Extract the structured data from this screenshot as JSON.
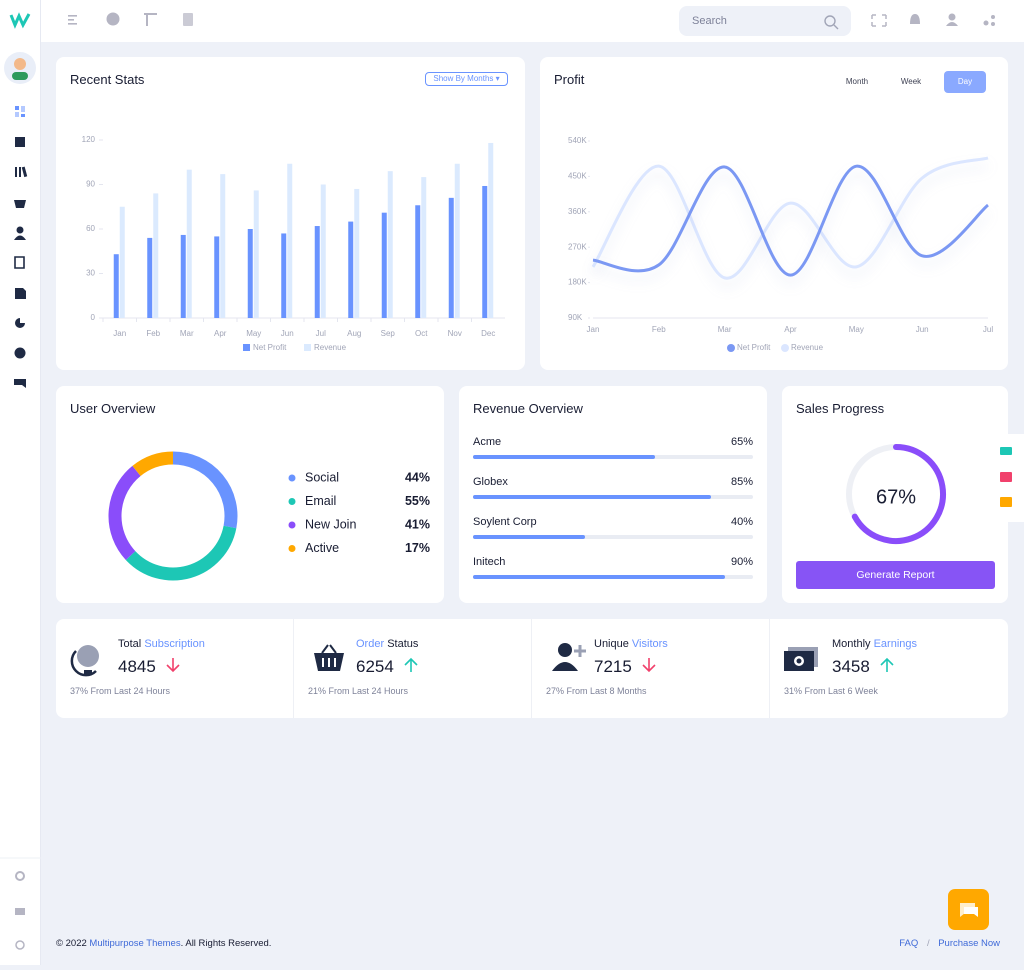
{
  "header": {
    "search_placeholder": "Search"
  },
  "chart_data": [
    {
      "type": "bar",
      "title": "Recent Stats",
      "button": "Show By Months",
      "categories": [
        "Jan",
        "Feb",
        "Mar",
        "Apr",
        "May",
        "Jun",
        "Jul",
        "Aug",
        "Sep",
        "Oct",
        "Nov",
        "Dec"
      ],
      "series": [
        {
          "name": "Net Profit",
          "color": "#6993ff",
          "values": [
            43,
            54,
            56,
            55,
            60,
            57,
            62,
            65,
            71,
            76,
            81,
            89
          ]
        },
        {
          "name": "Revenue",
          "color": "#dbeafe",
          "values": [
            75,
            84,
            100,
            97,
            86,
            104,
            90,
            87,
            99,
            95,
            104,
            118
          ]
        }
      ],
      "ylim": [
        0,
        120
      ],
      "yticks": [
        0,
        30,
        60,
        90,
        120
      ]
    },
    {
      "type": "line",
      "title": "Profit",
      "buttons": [
        "Month",
        "Week",
        "Day"
      ],
      "active_button": 2,
      "categories": [
        "Jan",
        "Feb",
        "Mar",
        "Apr",
        "May",
        "Jun",
        "Jul"
      ],
      "series": [
        {
          "name": "Net Profit",
          "color": "#7b98f3",
          "values": [
            237000,
            225000,
            474000,
            199000,
            476000,
            248000,
            377000
          ]
        },
        {
          "name": "Revenue",
          "color": "#dbe6ff",
          "values": [
            220000,
            476000,
            192000,
            382000,
            220000,
            446000,
            497000
          ]
        }
      ],
      "ylim": [
        90000,
        540000
      ],
      "yticks": [
        {
          "value": 90000,
          "label": "90K"
        },
        {
          "value": 180000,
          "label": "180K"
        },
        {
          "value": 270000,
          "label": "270K"
        },
        {
          "value": 360000,
          "label": "360K"
        },
        {
          "value": 450000,
          "label": "450K"
        },
        {
          "value": 540000,
          "label": "540K"
        }
      ]
    },
    {
      "type": "donut",
      "title": "User Overview",
      "categories": [
        "Social",
        "Email",
        "New Join",
        "Active"
      ],
      "values": [
        44,
        55,
        41,
        17
      ],
      "value_labels": [
        "44%",
        "55%",
        "41%",
        "17%"
      ],
      "colors": [
        "#6993ff",
        "#1dc7b5",
        "#8a4dfa",
        "#ffa800"
      ]
    },
    {
      "type": "progress",
      "title": "Revenue Overview",
      "categories": [
        "Acme",
        "Globex",
        "Soylent Corp",
        "Initech"
      ],
      "values": [
        65,
        85,
        40,
        90
      ],
      "value_labels": [
        "65%",
        "85%",
        "40%",
        "90%"
      ],
      "xlim": [
        0,
        100
      ],
      "color": "#6993ff"
    },
    {
      "type": "gauge",
      "title": "Sales Progress",
      "value": 67,
      "value_label": "67%",
      "ylim": [
        0,
        100
      ],
      "color": "#8a4dfa",
      "button": "Generate Report"
    }
  ],
  "stats": [
    {
      "title": [
        {
          "text": "Total",
          "accent": false
        },
        {
          "text": "Subscription",
          "accent": true
        }
      ],
      "value": 4845,
      "trend": "down",
      "note": "37% From Last 24 Hours"
    },
    {
      "title": [
        {
          "text": "Order",
          "accent": true
        },
        {
          "text": "Status",
          "accent": false
        }
      ],
      "value": 6254,
      "trend": "up",
      "note": "21% From Last 24 Hours"
    },
    {
      "title": [
        {
          "text": "Unique",
          "accent": false
        },
        {
          "text": "Visitors",
          "accent": true
        }
      ],
      "value": 7215,
      "trend": "down",
      "note": "27% From Last 8 Months"
    },
    {
      "title": [
        {
          "text": "Monthly",
          "accent": false
        },
        {
          "text": "Earnings",
          "accent": true
        }
      ],
      "value": 3458,
      "trend": "up",
      "note": "31% From Last 6 Week"
    }
  ],
  "footer": {
    "copyright_prefix": "© 2022",
    "brand": "Multipurpose Themes",
    "copyright_suffix": ". All Rights Reserved.",
    "links": [
      "FAQ",
      "Purchase Now"
    ],
    "separator": "/"
  }
}
